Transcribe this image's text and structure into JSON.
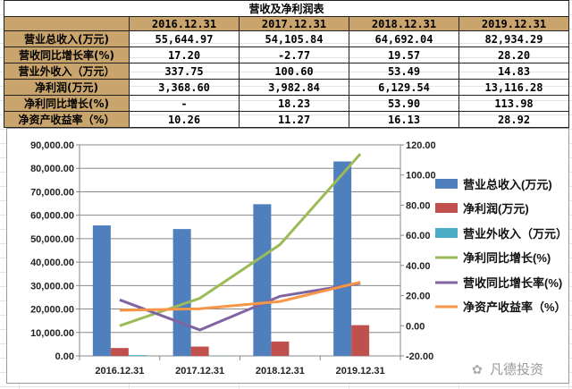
{
  "table": {
    "title": "营收及净利润表",
    "headers": [
      "2016.12.31",
      "2017.12.31",
      "2018.12.31",
      "2019.12.31"
    ],
    "rows": [
      {
        "label": "营业总收入(万元)",
        "values": [
          "55,644.97",
          "54,105.84",
          "64,692.04",
          "82,934.29"
        ]
      },
      {
        "label": "营收同比增长率(%)",
        "values": [
          "17.20",
          "-2.77",
          "19.57",
          "28.20"
        ]
      },
      {
        "label": "营业外收入（万元）",
        "values": [
          "337.75",
          "100.60",
          "53.49",
          "14.83"
        ]
      },
      {
        "label": "净利润(万元)",
        "values": [
          "3,368.60",
          "3,982.84",
          "6,129.54",
          "13,116.28"
        ]
      },
      {
        "label": "净利同比增长(%)",
        "values": [
          "-",
          "18.23",
          "53.90",
          "113.98"
        ]
      },
      {
        "label": "净资产收益率（%）",
        "values": [
          "10.26",
          "11.27",
          "16.13",
          "28.92"
        ]
      }
    ]
  },
  "chart_data": {
    "type": "bar",
    "categories": [
      "2016.12.31",
      "2017.12.31",
      "2018.12.31",
      "2019.12.31"
    ],
    "left_axis": {
      "range": [
        0,
        90000
      ],
      "ticks": [
        "0.00",
        "10,000.00",
        "20,000.00",
        "30,000.00",
        "40,000.00",
        "50,000.00",
        "60,000.00",
        "70,000.00",
        "80,000.00",
        "90,000.00"
      ]
    },
    "right_axis": {
      "range": [
        -20,
        120
      ],
      "ticks": [
        "-20.00",
        "0.00",
        "20.00",
        "40.00",
        "60.00",
        "80.00",
        "100.00",
        "120.00"
      ]
    },
    "series": [
      {
        "name": "营业总收入(万元)",
        "kind": "bar",
        "axis": "left",
        "color": "#4f7fbd",
        "values": [
          55644.97,
          54105.84,
          64692.04,
          82934.29
        ]
      },
      {
        "name": "净利润(万元)",
        "kind": "bar",
        "axis": "left",
        "color": "#c0504d",
        "values": [
          3368.6,
          3982.84,
          6129.54,
          13116.28
        ]
      },
      {
        "name": "营业外收入（万元）",
        "kind": "bar",
        "axis": "left",
        "color": "#4bacc6",
        "values": [
          337.75,
          100.6,
          53.49,
          14.83
        ]
      },
      {
        "name": "净利同比增长(%)",
        "kind": "line",
        "axis": "right",
        "color": "#9bbb59",
        "values": [
          0,
          18.23,
          53.9,
          113.98
        ]
      },
      {
        "name": "营收同比增长率(%)",
        "kind": "line",
        "axis": "right",
        "color": "#8064a2",
        "values": [
          17.2,
          -2.77,
          19.57,
          28.2
        ]
      },
      {
        "name": "净资产收益率（%）",
        "kind": "line",
        "axis": "right",
        "color": "#f79646",
        "values": [
          10.26,
          11.27,
          16.13,
          28.92
        ]
      }
    ],
    "legend": "right",
    "grid": true
  },
  "watermark": "凡德投资"
}
